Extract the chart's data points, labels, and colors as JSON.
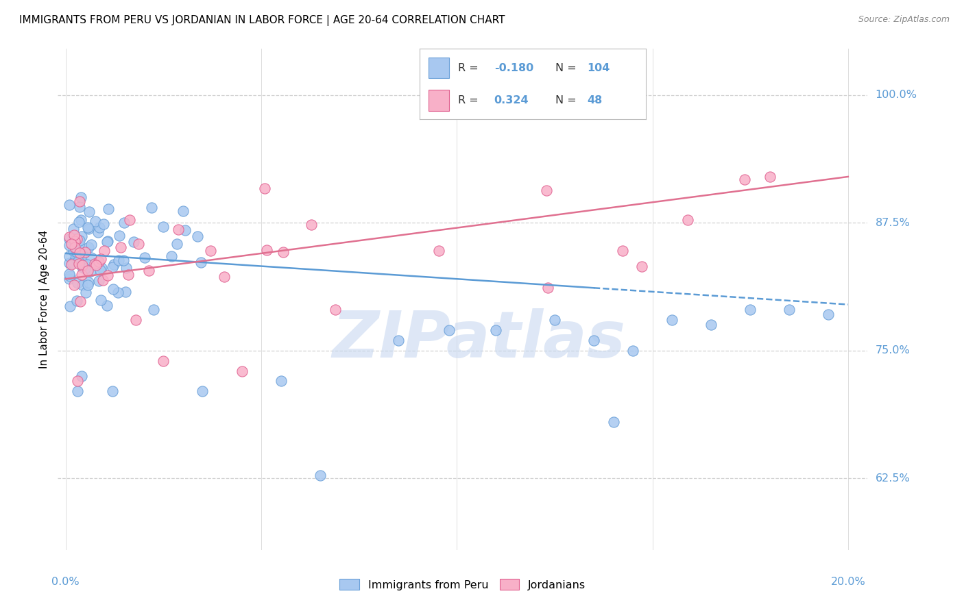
{
  "title": "IMMIGRANTS FROM PERU VS JORDANIAN IN LABOR FORCE | AGE 20-64 CORRELATION CHART",
  "source": "Source: ZipAtlas.com",
  "ylabel": "In Labor Force | Age 20-64",
  "ytick_labels": [
    "62.5%",
    "75.0%",
    "87.5%",
    "100.0%"
  ],
  "ytick_values": [
    0.625,
    0.75,
    0.875,
    1.0
  ],
  "xtick_labels": [
    "0.0%",
    "20.0%"
  ],
  "xlim": [
    -0.002,
    0.205
  ],
  "ylim": [
    0.555,
    1.045
  ],
  "peru_fill": "#a8c8f0",
  "peru_edge": "#6aa0d8",
  "jordan_fill": "#f8b0c8",
  "jordan_edge": "#e06090",
  "peru_line_color": "#5b9bd5",
  "jordan_line_color": "#e07090",
  "grid_color": "#d0d0d0",
  "watermark": "ZIPatlas",
  "watermark_color": "#c8d8f0",
  "peru_R": -0.18,
  "peru_N": 104,
  "jordan_R": 0.324,
  "jordan_N": 48,
  "legend_peru_r": "-0.180",
  "legend_peru_n": "104",
  "legend_jordan_r": "0.324",
  "legend_jordan_n": "48"
}
